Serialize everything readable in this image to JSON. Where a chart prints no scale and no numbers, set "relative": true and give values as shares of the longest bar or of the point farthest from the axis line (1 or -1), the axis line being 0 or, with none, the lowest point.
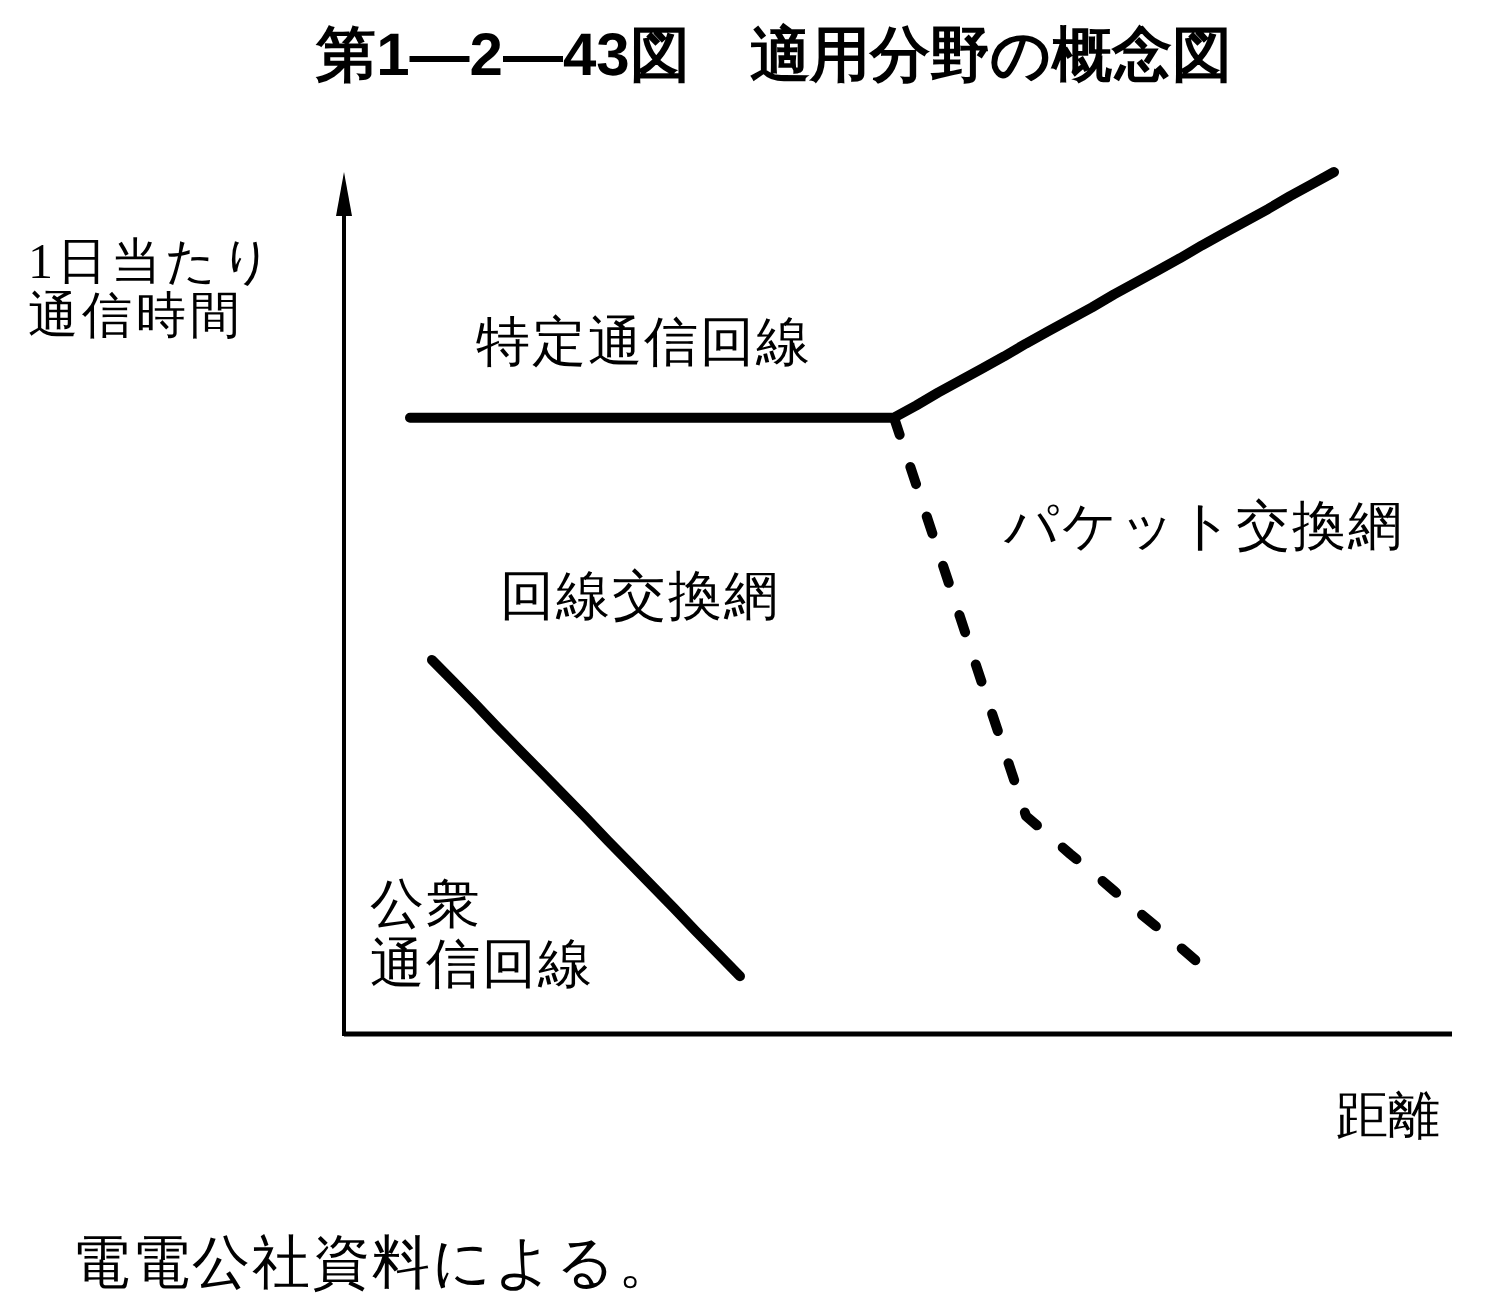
{
  "chart_data": {
    "type": "line",
    "title": "第1—2—43図　適用分野の概念図",
    "xlabel": "距離",
    "ylabel": "1日当たり通信時間",
    "relative": true,
    "categories": [
      null,
      null,
      null,
      null,
      null,
      null,
      null,
      null,
      null,
      null,
      null,
      null,
      null,
      null,
      null,
      null,
      null,
      null,
      null,
      null,
      null,
      null,
      null,
      null,
      null,
      null,
      null,
      null,
      null,
      null,
      null,
      null,
      null,
      null,
      null,
      null,
      null,
      null,
      null,
      null,
      null,
      null,
      null,
      null,
      null,
      null,
      null,
      null,
      null,
      null,
      null
    ],
    "series": [
      {
        "color": "#000000",
        "line_style": "solid",
        "values": [
          null,
          null,
          null,
          0.715,
          0.715,
          0.715,
          0.715,
          0.715,
          0.715,
          0.715,
          0.715,
          0.715,
          0.715,
          0.715,
          0.715,
          0.715,
          0.715,
          0.715,
          0.715,
          0.715,
          0.715,
          0.715,
          0.715,
          0.715,
          0.715,
          0.715,
          0.729,
          0.744,
          0.758,
          0.772,
          0.786,
          0.801,
          0.815,
          0.829,
          0.843,
          0.858,
          0.872,
          0.886,
          0.9,
          0.915,
          0.929,
          0.943,
          0.957,
          0.972,
          0.986,
          1,
          null,
          null,
          null,
          null,
          null
        ]
      },
      {
        "color": "#000000",
        "line_style": "dashed",
        "values": [
          null,
          null,
          null,
          null,
          null,
          null,
          null,
          null,
          null,
          null,
          null,
          null,
          null,
          null,
          null,
          null,
          null,
          null,
          null,
          null,
          null,
          null,
          null,
          null,
          null,
          0.715,
          0.638,
          0.561,
          0.484,
          0.407,
          0.33,
          0.253,
          0.231,
          0.209,
          0.188,
          0.166,
          0.144,
          0.123,
          0.101,
          0.079,
          null,
          null,
          null,
          null,
          null,
          null,
          null,
          null,
          null,
          null,
          null
        ]
      },
      {
        "color": "#000000",
        "line_style": "solid",
        "values": [
          null,
          null,
          null,
          null,
          0.434,
          0.408,
          0.382,
          0.355,
          0.329,
          0.303,
          0.277,
          0.251,
          0.224,
          0.198,
          0.172,
          0.146,
          0.119,
          0.093,
          0.067,
          null,
          null,
          null,
          null,
          null,
          null,
          null,
          null,
          null,
          null,
          null,
          null,
          null,
          null,
          null,
          null,
          null,
          null,
          null,
          null,
          null,
          null,
          null,
          null,
          null,
          null,
          null,
          null,
          null,
          null,
          null,
          null
        ]
      }
    ],
    "annotations": [
      "特定通信回線",
      "回線交換網",
      "パケット交換網",
      "公衆通信回線",
      "電電公社資料による。"
    ]
  }
}
